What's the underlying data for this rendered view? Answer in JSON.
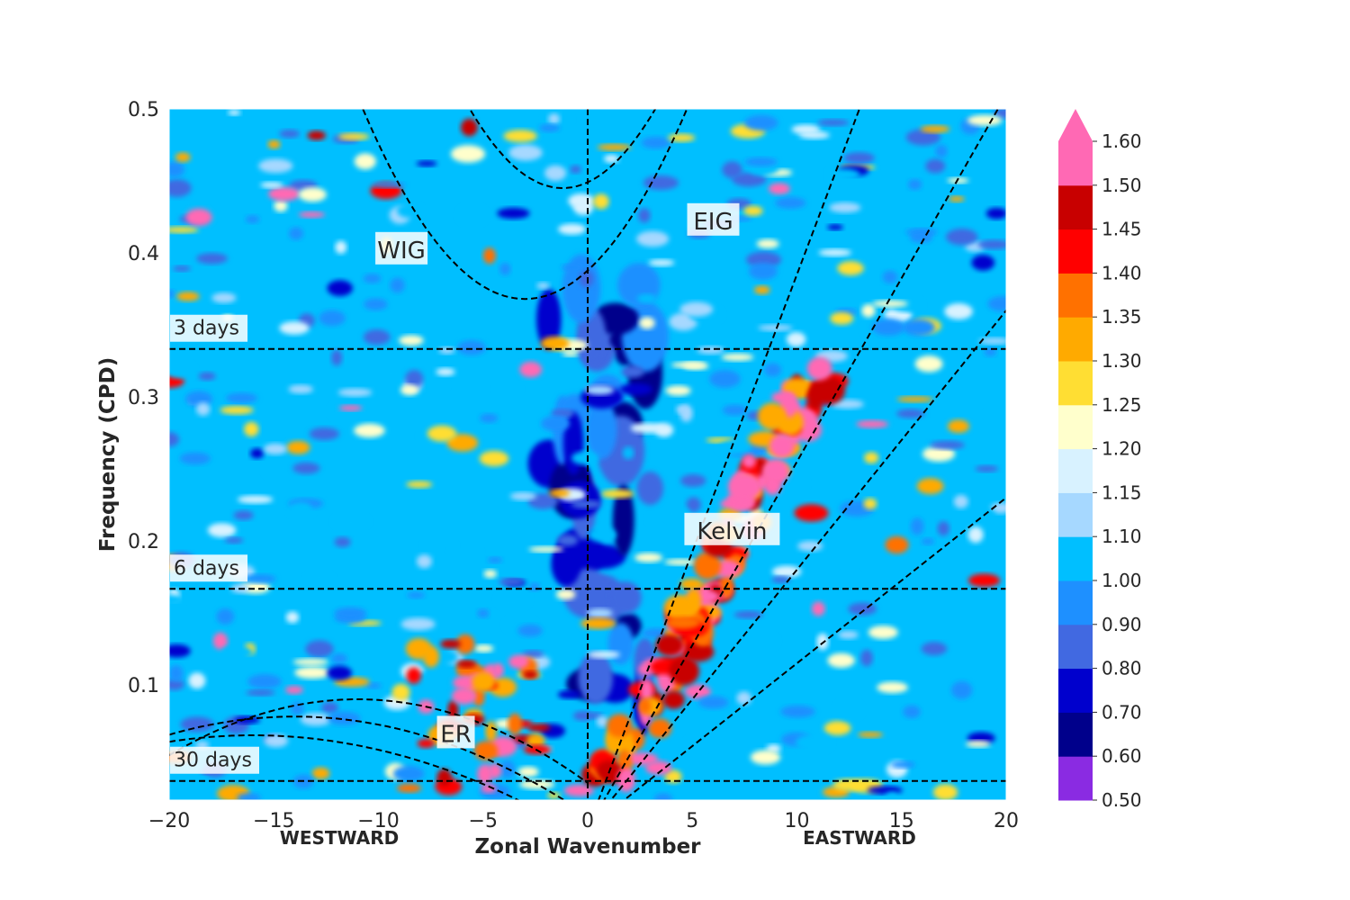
{
  "chart_data": {
    "type": "heatmap",
    "xlabel": "Zonal Wavenumber",
    "ylabel": "Frequency (CPD)",
    "xlim": [
      -20,
      20
    ],
    "ylim": [
      0.02,
      0.5
    ],
    "x_ticks": [
      -20,
      -15,
      -10,
      -5,
      0,
      5,
      10,
      15,
      20
    ],
    "x_tick_labels": [
      "−20",
      "−15",
      "−10",
      "−5",
      "0",
      "5",
      "10",
      "15",
      "20"
    ],
    "y_ticks": [
      0.1,
      0.2,
      0.3,
      0.4,
      0.5
    ],
    "y_tick_labels": [
      "0.1",
      "0.2",
      "0.3",
      "0.4",
      "0.5"
    ],
    "direction_labels": {
      "west": "WESTWARD",
      "east": "EASTWARD"
    },
    "period_lines": [
      {
        "label": "3 days",
        "freq": 0.3333
      },
      {
        "label": "6 days",
        "freq": 0.1667
      },
      {
        "label": "30 days",
        "freq": 0.0333
      }
    ],
    "wave_labels": [
      {
        "label": "WIG",
        "k": -8.9,
        "freq": 0.402
      },
      {
        "label": "EIG",
        "k": 6.0,
        "freq": 0.422
      },
      {
        "label": "Kelvin",
        "k": 6.9,
        "freq": 0.207
      },
      {
        "label": "ER",
        "k": -6.3,
        "freq": 0.066
      }
    ],
    "dispersion_curves": {
      "kelvin_slopes": [
        0.0385,
        0.0255,
        0.018,
        0.0115
      ],
      "igw_parabolas": [
        {
          "center_k": -1.2,
          "min_freq": 0.445,
          "curvature": 0.0028
        },
        {
          "center_k": -3.0,
          "min_freq": 0.368,
          "curvature": 0.0022
        }
      ],
      "er_curves": [
        {
          "peak_k": -11,
          "peak_freq": 0.09,
          "curvature": 0.00048
        },
        {
          "peak_k": -14,
          "peak_freq": 0.078,
          "curvature": 0.00035
        },
        {
          "peak_k": -16,
          "peak_freq": 0.065,
          "curvature": 0.00028
        }
      ]
    },
    "colorbar": {
      "levels": [
        0.5,
        0.6,
        0.7,
        0.8,
        0.9,
        1.0,
        1.1,
        1.15,
        1.2,
        1.25,
        1.3,
        1.35,
        1.4,
        1.45,
        1.5,
        1.6
      ],
      "level_labels": [
        "0.50",
        "0.60",
        "0.70",
        "0.80",
        "0.90",
        "1.00",
        "1.10",
        "1.15",
        "1.20",
        "1.25",
        "1.30",
        "1.35",
        "1.40",
        "1.45",
        "1.50",
        "1.60"
      ],
      "colors": [
        "#8a2be2",
        "#00008b",
        "#0000cd",
        "#4169e1",
        "#1e90ff",
        "#00bfff",
        "#a6d8ff",
        "#d8f2ff",
        "#ffffcc",
        "#ffde33",
        "#ffaa00",
        "#ff7100",
        "#ff0000",
        "#c80000",
        "#ff69b4"
      ],
      "extend": "max"
    },
    "features": {
      "kelvin_band": {
        "description_level": 1.55
      },
      "background_level": 1.05
    }
  }
}
